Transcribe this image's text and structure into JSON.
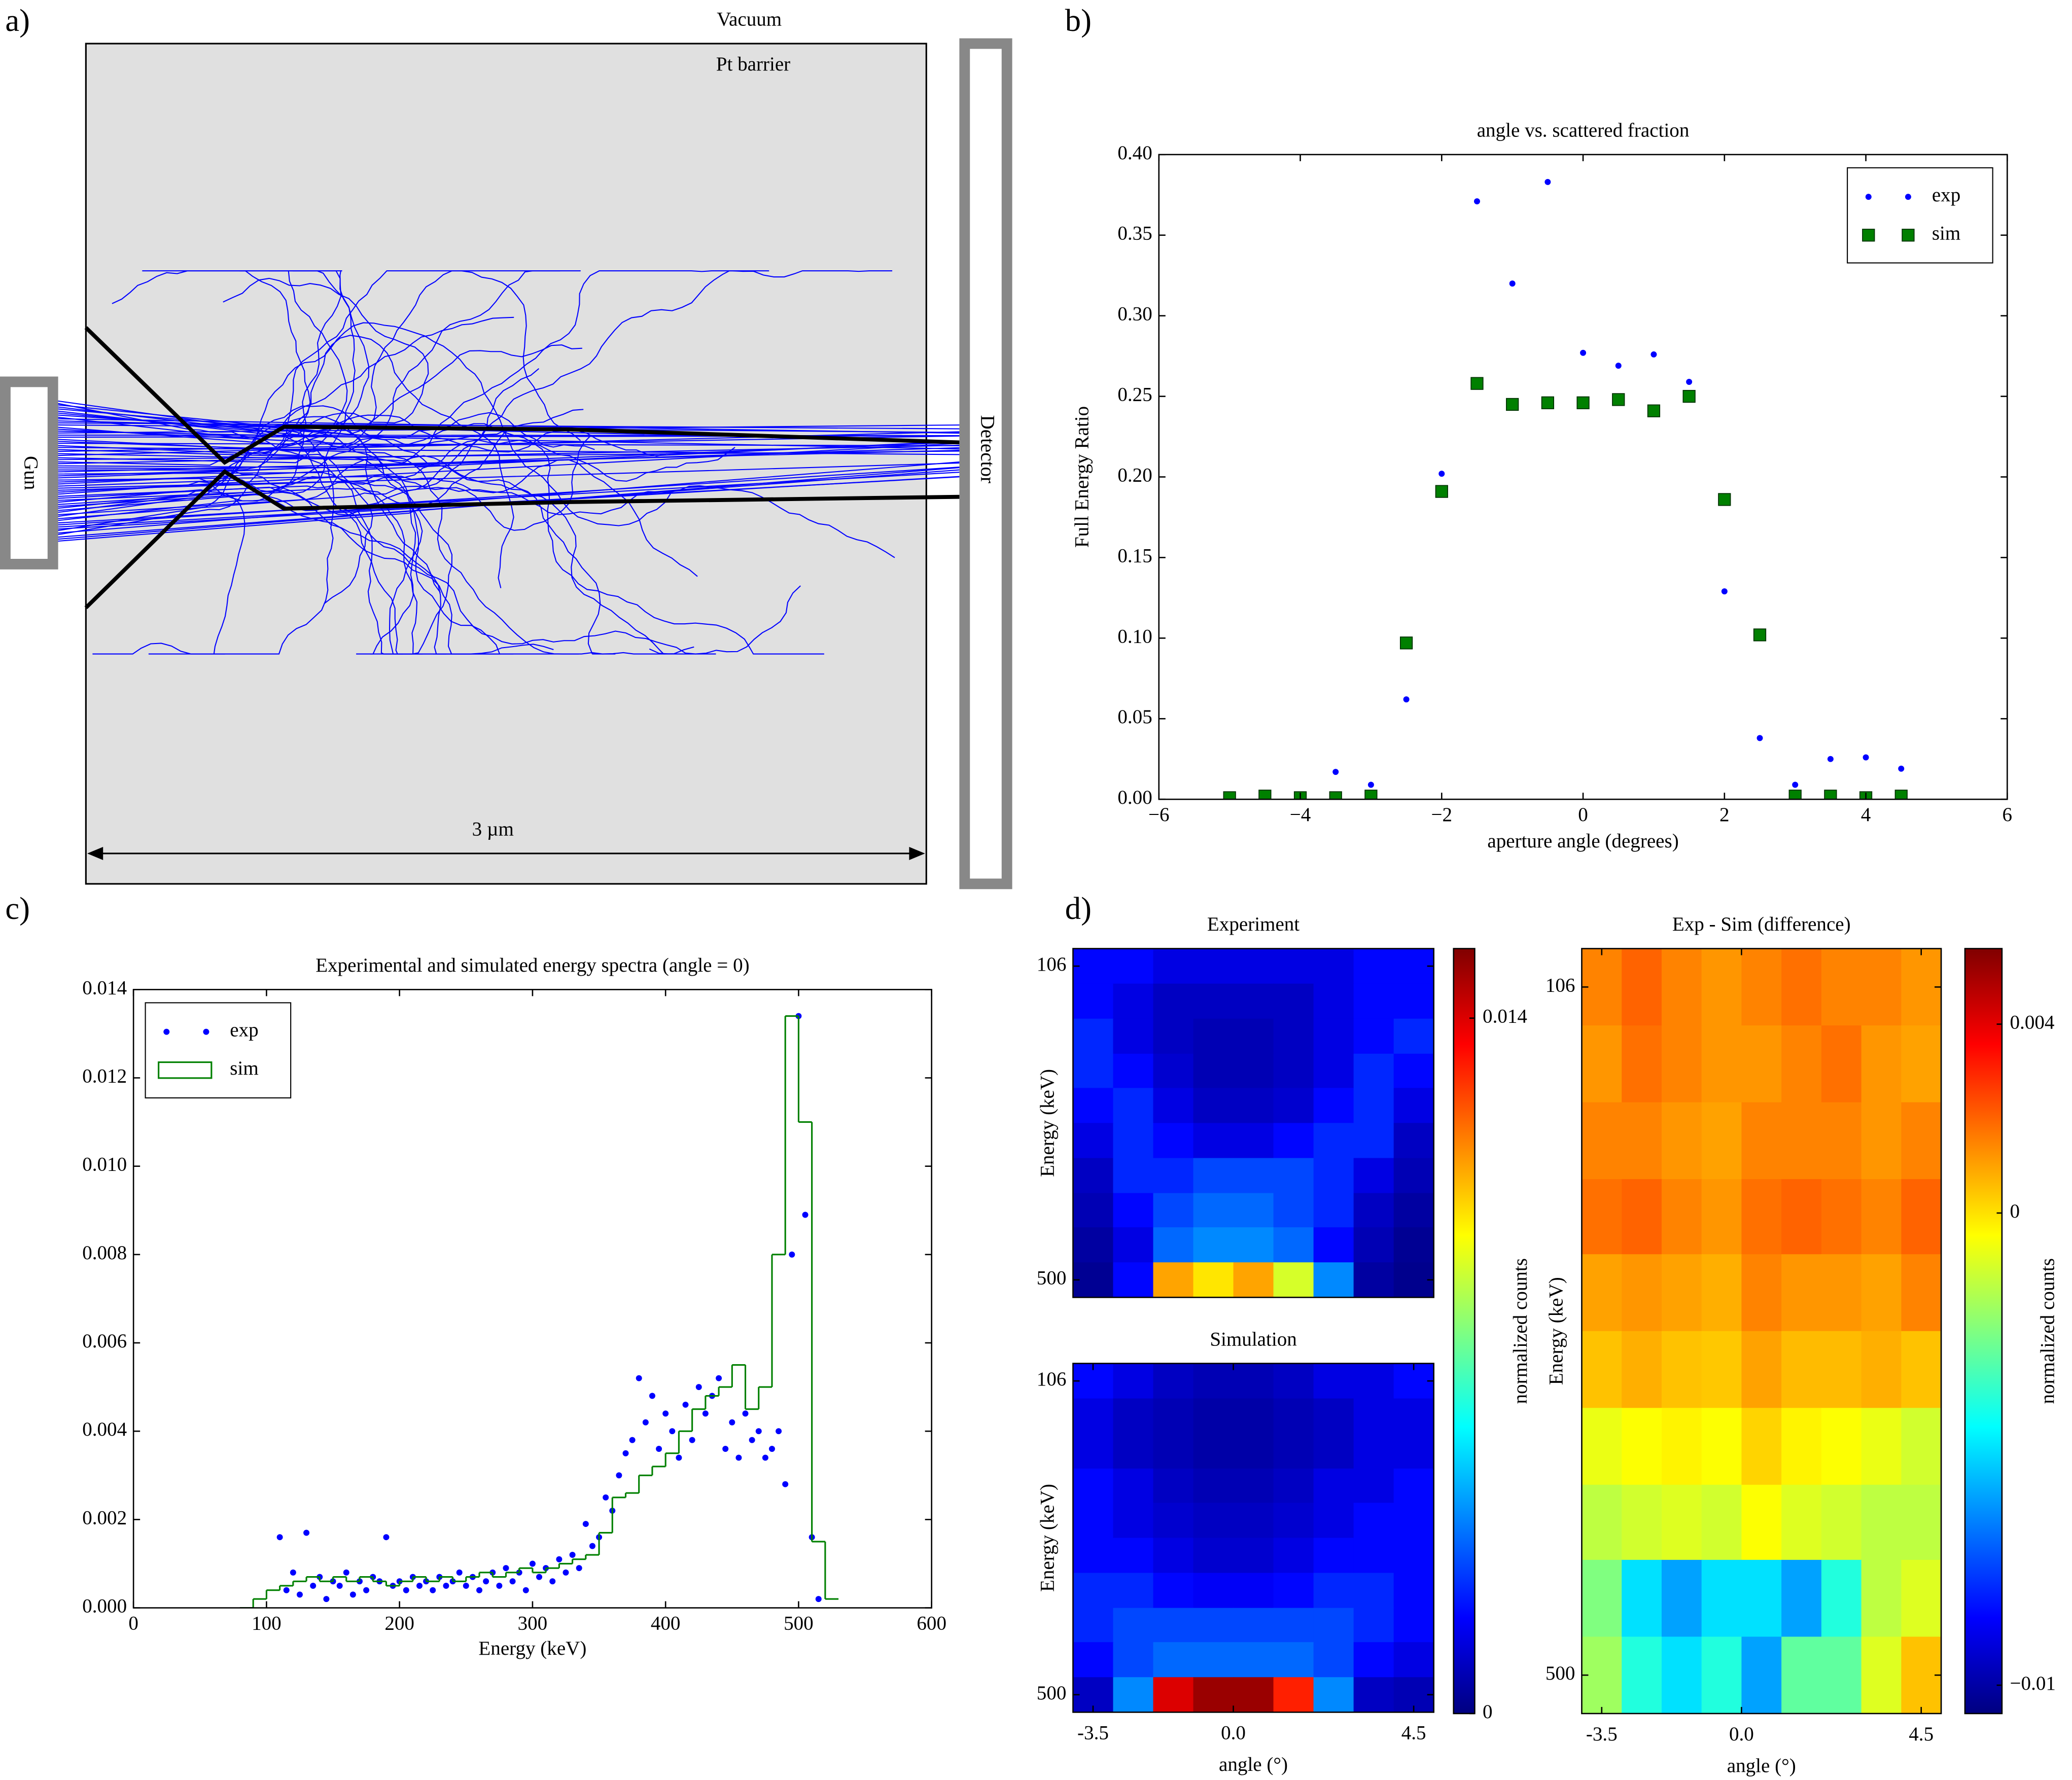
{
  "panel_labels": [
    "a)",
    "b)",
    "c)",
    "d)"
  ],
  "diagram": {
    "vacuum": "Vacuum",
    "barrier": "Pt barrier",
    "gun": "Gun",
    "detector": "Detector",
    "scale": "3 µm"
  },
  "chart_data": [
    {
      "type": "scatter",
      "title": "angle vs. scattered fraction",
      "xlabel": "aperture angle (degrees)",
      "ylabel": "Full Energy Ratio",
      "x": [
        -5,
        -4.5,
        -4,
        -3.5,
        -3,
        -2.5,
        -2,
        -1.5,
        -1,
        -0.5,
        0,
        0.5,
        1,
        1.5,
        2,
        2.5,
        3,
        3.5,
        4,
        4.5
      ],
      "series": [
        {
          "name": "exp",
          "color": "#0000ff",
          "marker": "circle",
          "values": [
            null,
            null,
            null,
            0.017,
            0.009,
            0.062,
            0.202,
            0.371,
            0.32,
            0.383,
            0.277,
            0.269,
            0.276,
            0.259,
            0.129,
            0.038,
            0.009,
            0.025,
            0.026,
            0.019
          ]
        },
        {
          "name": "sim",
          "color": "#008000",
          "marker": "square",
          "values": [
            0.001,
            0.002,
            0.001,
            0.001,
            0.002,
            0.097,
            0.191,
            0.258,
            0.245,
            0.246,
            0.246,
            0.248,
            0.241,
            0.25,
            0.186,
            0.102,
            0.002,
            0.002,
            0.001,
            0.002
          ]
        }
      ],
      "xlim": [
        -6,
        6
      ],
      "xticks": [
        {
          "value": -6,
          "label": "−6"
        },
        {
          "value": -4,
          "label": "−4"
        },
        {
          "value": -2,
          "label": "−2"
        },
        0,
        2,
        4,
        6
      ],
      "ylim": [
        0,
        0.4
      ],
      "yticks": [
        {
          "value": 0,
          "label": "0.00"
        },
        {
          "value": 0.05,
          "label": "0.05"
        },
        {
          "value": 0.1,
          "label": "0.10"
        },
        {
          "value": 0.15,
          "label": "0.15"
        },
        {
          "value": 0.2,
          "label": "0.20"
        },
        {
          "value": 0.25,
          "label": "0.25"
        },
        {
          "value": 0.3,
          "label": "0.30"
        },
        {
          "value": 0.35,
          "label": "0.35"
        },
        {
          "value": 0.4,
          "label": "0.40"
        }
      ],
      "legend": "upper right"
    },
    {
      "type": "spectrum",
      "title": "Experimental and simulated energy spectra (angle = 0)",
      "xlabel": "Energy (keV)",
      "series": [
        {
          "name": "exp",
          "color": "#0000ff",
          "marker": "circle",
          "x": [
            110,
            115,
            120,
            125,
            130,
            135,
            140,
            145,
            150,
            155,
            160,
            165,
            170,
            175,
            180,
            185,
            190,
            195,
            200,
            205,
            210,
            215,
            220,
            225,
            230,
            235,
            240,
            245,
            250,
            255,
            260,
            265,
            270,
            275,
            280,
            285,
            290,
            295,
            300,
            305,
            310,
            315,
            320,
            325,
            330,
            335,
            340,
            345,
            350,
            355,
            360,
            365,
            370,
            375,
            380,
            385,
            390,
            395,
            400,
            405,
            410,
            415,
            420,
            425,
            430,
            435,
            440,
            445,
            450,
            455,
            460,
            465,
            470,
            475,
            480,
            485,
            490,
            495,
            500,
            505,
            510,
            515
          ],
          "values": [
            0.0016,
            0.0004,
            0.0008,
            0.0003,
            0.0017,
            0.0005,
            0.0007,
            0.0002,
            0.0006,
            0.0005,
            0.0008,
            0.0003,
            0.0006,
            0.0004,
            0.0007,
            0.0006,
            0.0016,
            0.0005,
            0.0006,
            0.0004,
            0.0007,
            0.0005,
            0.0006,
            0.0004,
            0.0007,
            0.0005,
            0.0006,
            0.0008,
            0.0005,
            0.0007,
            0.0004,
            0.0006,
            0.0008,
            0.0005,
            0.0009,
            0.0006,
            0.0008,
            0.0004,
            0.001,
            0.0007,
            0.0009,
            0.0006,
            0.0011,
            0.0008,
            0.0012,
            0.0009,
            0.0019,
            0.0014,
            0.0016,
            0.0025,
            0.0022,
            0.003,
            0.0035,
            0.0038,
            0.0052,
            0.0042,
            0.0048,
            0.0036,
            0.0044,
            0.004,
            0.0034,
            0.0046,
            0.0038,
            0.005,
            0.0044,
            0.0048,
            0.0052,
            0.0036,
            0.0042,
            0.0034,
            0.0044,
            0.0038,
            0.004,
            0.0034,
            0.0036,
            0.004,
            0.0028,
            0.008,
            0.0134,
            0.0089,
            0.0016,
            0.0002
          ]
        },
        {
          "name": "sim",
          "color": "#008000",
          "marker": "step",
          "bins": [
            80,
            90,
            100,
            110,
            120,
            130,
            140,
            150,
            160,
            170,
            180,
            190,
            200,
            210,
            220,
            230,
            240,
            250,
            260,
            270,
            280,
            290,
            300,
            310,
            320,
            330,
            340,
            350,
            360,
            370,
            380,
            390,
            400,
            410,
            420,
            430,
            440,
            450,
            460,
            470,
            480,
            490,
            500,
            510,
            520,
            530
          ],
          "values": [
            0,
            0.0002,
            0.0004,
            0.0005,
            0.0006,
            0.0007,
            0.0006,
            0.0007,
            0.0006,
            0.0007,
            0.0006,
            0.0005,
            0.0006,
            0.0007,
            0.0006,
            0.0007,
            0.0006,
            0.0007,
            0.0008,
            0.0007,
            0.0008,
            0.0009,
            0.0008,
            0.0009,
            0.001,
            0.0011,
            0.0012,
            0.0017,
            0.0025,
            0.0026,
            0.003,
            0.0032,
            0.0035,
            0.004,
            0.0045,
            0.0048,
            0.005,
            0.0055,
            0.0045,
            0.005,
            0.008,
            0.0134,
            0.011,
            0.0015,
            0.0002
          ]
        }
      ],
      "xlim": [
        0,
        600
      ],
      "xticks": [
        0,
        100,
        200,
        300,
        400,
        500,
        600
      ],
      "ylim": [
        0,
        0.014
      ],
      "yticks": [
        {
          "value": 0,
          "label": "0.000"
        },
        {
          "value": 0.002,
          "label": "0.002"
        },
        {
          "value": 0.004,
          "label": "0.004"
        },
        {
          "value": 0.006,
          "label": "0.006"
        },
        {
          "value": 0.008,
          "label": "0.008"
        },
        {
          "value": 0.01,
          "label": "0.010"
        },
        {
          "value": 0.012,
          "label": "0.012"
        },
        {
          "value": 0.014,
          "label": "0.014"
        }
      ],
      "legend": "upper left"
    },
    {
      "type": "heatmap",
      "title": "Experiment",
      "ylabel": "Energy (keV)",
      "colormap": "jet",
      "x": [
        -3.5,
        -2.5,
        -1.5,
        -0.5,
        0.5,
        1.5,
        2.5,
        3.5,
        4.5
      ],
      "y": [
        106,
        150,
        194,
        238,
        281,
        325,
        369,
        413,
        456,
        500
      ],
      "z": [
        [
          0.002,
          0.002,
          0.0015,
          0.0015,
          0.0015,
          0.0015,
          0.0015,
          0.002,
          0.002
        ],
        [
          0.002,
          0.0015,
          0.001,
          0.001,
          0.001,
          0.001,
          0.0015,
          0.002,
          0.002
        ],
        [
          0.0025,
          0.0015,
          0.001,
          0.0008,
          0.0008,
          0.001,
          0.0015,
          0.002,
          0.0025
        ],
        [
          0.0025,
          0.002,
          0.0012,
          0.0008,
          0.0008,
          0.001,
          0.0015,
          0.0025,
          0.002
        ],
        [
          0.002,
          0.0025,
          0.0015,
          0.001,
          0.001,
          0.0012,
          0.002,
          0.0025,
          0.0015
        ],
        [
          0.0015,
          0.0025,
          0.002,
          0.0015,
          0.0015,
          0.002,
          0.0025,
          0.0025,
          0.001
        ],
        [
          0.001,
          0.0025,
          0.0025,
          0.003,
          0.003,
          0.003,
          0.0025,
          0.0015,
          0.0008
        ],
        [
          0.0008,
          0.002,
          0.003,
          0.0035,
          0.0035,
          0.003,
          0.0025,
          0.001,
          0.0005
        ],
        [
          0.0005,
          0.0015,
          0.0035,
          0.004,
          0.004,
          0.0035,
          0.002,
          0.0008,
          0.0003
        ],
        [
          0.0003,
          0.002,
          0.011,
          0.01,
          0.011,
          0.009,
          0.004,
          0.0005,
          0.0002
        ]
      ],
      "xlim": [
        -4,
        5
      ],
      "ylim": [
        522,
        84
      ],
      "yticks": [
        106,
        500
      ],
      "clim": [
        0,
        0.0154
      ],
      "colorbar": {
        "ticks": [
          0,
          0.014
        ],
        "label": "normalized counts"
      }
    },
    {
      "type": "heatmap",
      "title": "Simulation",
      "ylabel": "Energy (keV)",
      "xlabel": "angle (°)",
      "colormap": "jet",
      "x": [
        -3.5,
        -2.5,
        -1.5,
        -0.5,
        0.5,
        1.5,
        2.5,
        3.5,
        4.5
      ],
      "y": [
        106,
        150,
        194,
        238,
        281,
        325,
        369,
        413,
        456,
        500
      ],
      "z": [
        [
          0.002,
          0.0015,
          0.001,
          0.0008,
          0.0008,
          0.001,
          0.0015,
          0.0015,
          0.002
        ],
        [
          0.0015,
          0.001,
          0.0008,
          0.0006,
          0.0006,
          0.0008,
          0.001,
          0.0015,
          0.0015
        ],
        [
          0.0015,
          0.001,
          0.0008,
          0.0006,
          0.0006,
          0.0008,
          0.001,
          0.0015,
          0.0015
        ],
        [
          0.002,
          0.0015,
          0.001,
          0.0008,
          0.0008,
          0.001,
          0.0015,
          0.0015,
          0.002
        ],
        [
          0.002,
          0.0015,
          0.0012,
          0.001,
          0.001,
          0.0012,
          0.0015,
          0.002,
          0.002
        ],
        [
          0.002,
          0.002,
          0.0015,
          0.0012,
          0.0012,
          0.0015,
          0.002,
          0.002,
          0.002
        ],
        [
          0.0025,
          0.0025,
          0.002,
          0.0018,
          0.0018,
          0.002,
          0.0025,
          0.0025,
          0.002
        ],
        [
          0.0025,
          0.003,
          0.003,
          0.003,
          0.003,
          0.003,
          0.003,
          0.0025,
          0.002
        ],
        [
          0.002,
          0.003,
          0.0035,
          0.0035,
          0.0035,
          0.0035,
          0.003,
          0.002,
          0.0015
        ],
        [
          0.001,
          0.004,
          0.014,
          0.015,
          0.015,
          0.013,
          0.004,
          0.001,
          0.0008
        ]
      ],
      "xlim": [
        -4,
        5
      ],
      "xticks": [
        -3.5,
        {
          "value": 0,
          "label": "0.0"
        },
        4.5
      ],
      "ylim": [
        522,
        84
      ],
      "yticks": [
        106,
        500
      ],
      "clim": [
        0,
        0.0154
      ]
    },
    {
      "type": "heatmap",
      "title": "Exp - Sim (difference)",
      "ylabel": "Energy (keV)",
      "xlabel": "angle (°)",
      "colormap": "jet",
      "x": [
        -3.5,
        -2.5,
        -1.5,
        -0.5,
        0.5,
        1.5,
        2.5,
        3.5,
        4.5
      ],
      "y": [
        106,
        150,
        194,
        238,
        281,
        325,
        369,
        413,
        456,
        500
      ],
      "z": [
        [
          0.0015,
          0.002,
          0.0015,
          0.0012,
          0.0015,
          0.0018,
          0.0015,
          0.0015,
          0.0012
        ],
        [
          0.0012,
          0.0018,
          0.0015,
          0.0012,
          0.0012,
          0.0015,
          0.0018,
          0.0012,
          0.001
        ],
        [
          0.0015,
          0.0015,
          0.0012,
          0.001,
          0.0015,
          0.0015,
          0.0015,
          0.0012,
          0.0015
        ],
        [
          0.0018,
          0.002,
          0.0015,
          0.0012,
          0.0018,
          0.002,
          0.0018,
          0.0015,
          0.002
        ],
        [
          0.001,
          0.0012,
          0.001,
          0.0008,
          0.0015,
          0.0012,
          0.0012,
          0.001,
          0.0015
        ],
        [
          0.0005,
          0.0008,
          0.0005,
          0.0004,
          0.001,
          0.0006,
          0.0006,
          0.0008,
          0.0005
        ],
        [
          -0.0008,
          -0.0005,
          -0.0003,
          -0.0005,
          0.0002,
          -0.0003,
          -0.0005,
          -0.0008,
          -0.0012
        ],
        [
          -0.0015,
          -0.0012,
          -0.001,
          -0.0012,
          -0.0005,
          -0.001,
          -0.0012,
          -0.0015,
          -0.0015
        ],
        [
          -0.0025,
          -0.005,
          -0.006,
          -0.005,
          -0.005,
          -0.006,
          -0.004,
          -0.0015,
          -0.001
        ],
        [
          -0.002,
          -0.004,
          -0.005,
          -0.004,
          -0.006,
          -0.003,
          -0.003,
          -0.001,
          0.0005
        ]
      ],
      "xlim": [
        -4,
        5
      ],
      "xticks": [
        -3.5,
        {
          "value": 0,
          "label": "0.0"
        },
        4.5
      ],
      "ylim": [
        522,
        84
      ],
      "yticks": [
        106,
        500
      ],
      "clim": [
        -0.0106,
        0.0056
      ],
      "colorbar": {
        "ticks": [
          0.004,
          0,
          {
            "value": -0.01,
            "label": "−0.01"
          }
        ],
        "label": "normalized counts"
      }
    }
  ]
}
